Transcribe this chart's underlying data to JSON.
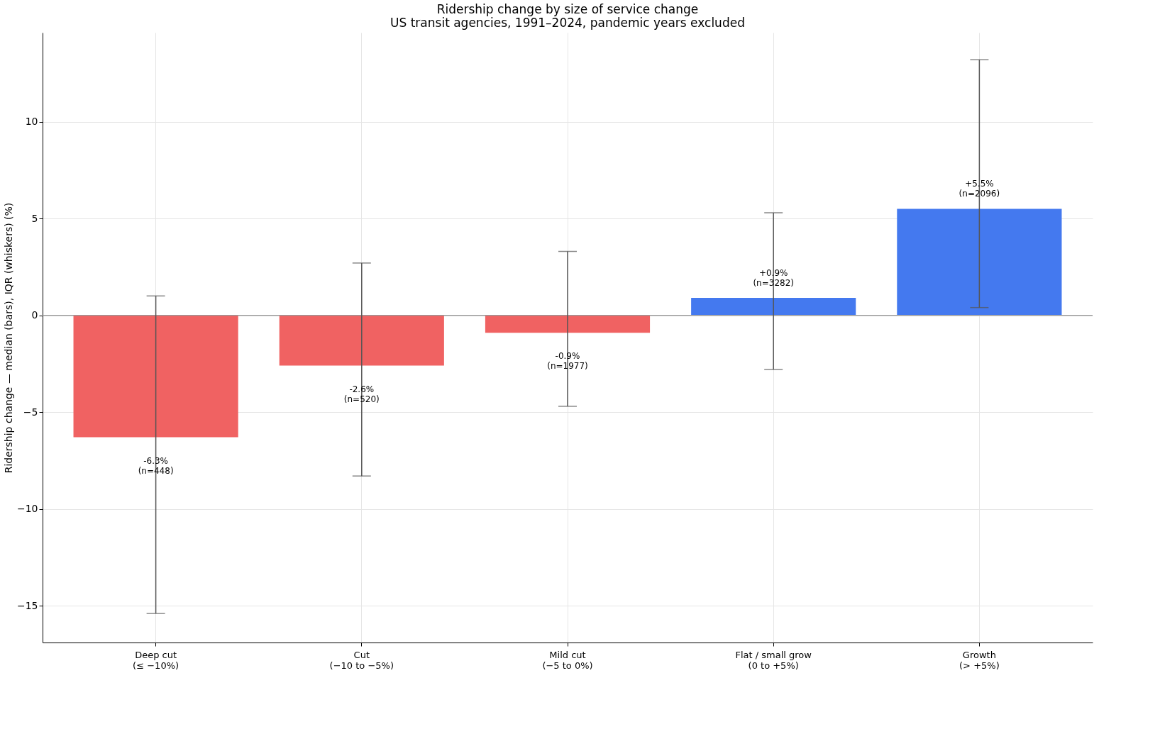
{
  "chart_data": {
    "type": "bar",
    "title": "Ridership change by size of service change",
    "subtitle": "US transit agencies, 1991–2024, pandemic years excluded",
    "ylabel": "Ridership change — median (bars), IQR (whiskers) (%)",
    "categories": [
      "Deep cut\n(≤ −10%)",
      "Cut\n(−10 to −5%)",
      "Mild cut\n(−5 to 0%)",
      "Flat / small grow\n(0 to +5%)",
      "Growth\n(> +5%)"
    ],
    "values": [
      -6.3,
      -2.6,
      -0.9,
      0.9,
      5.5
    ],
    "colors": [
      "#f06262",
      "#f06262",
      "#f06262",
      "#4479ef",
      "#4479ef"
    ],
    "errors": [
      [
        -15.4,
        1.0
      ],
      [
        -8.3,
        2.7
      ],
      [
        -4.7,
        3.3
      ],
      [
        -2.8,
        5.3
      ],
      [
        0.4,
        13.2
      ]
    ],
    "value_labels": [
      "-6.3%\n(n=448)",
      "-2.6%\n(n=520)",
      "-0.9%\n(n=1977)",
      "+0.9%\n(n=3282)",
      "+5.5%\n(n=2096)"
    ],
    "ylim": [
      -16.9,
      14.6
    ],
    "yticks": [
      -15,
      -10,
      -5,
      0,
      5,
      10
    ],
    "ref_lines": [
      {
        "axis": "y",
        "value": 0,
        "color": "#999999"
      }
    ],
    "grid": true
  }
}
